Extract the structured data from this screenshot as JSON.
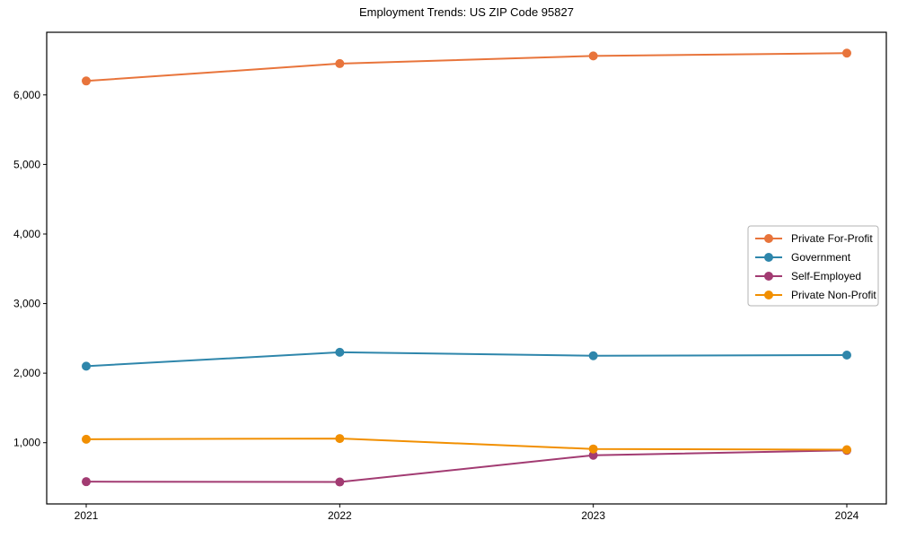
{
  "chart_data": {
    "type": "line",
    "title": "Employment Trends: US ZIP Code 95827",
    "xlabel": "",
    "ylabel": "",
    "x_tick_labels": [
      "2021",
      "2022",
      "2023",
      "2024"
    ],
    "yticks": [
      1000,
      2000,
      3000,
      4000,
      5000,
      6000
    ],
    "ytick_labels": [
      "1,000",
      "2,000",
      "3,000",
      "4,000",
      "5,000",
      "6,000"
    ],
    "ylim": [
      120,
      6900
    ],
    "grid": false,
    "legend_position": "center right",
    "marker": "circle",
    "series": [
      {
        "name": "Private For-Profit",
        "color": "#E8743B",
        "values": [
          6200,
          6450,
          6560,
          6600
        ]
      },
      {
        "name": "Government",
        "color": "#2E86AB",
        "values": [
          2100,
          2300,
          2250,
          2260
        ]
      },
      {
        "name": "Self-Employed",
        "color": "#A23B72",
        "values": [
          440,
          435,
          820,
          890
        ]
      },
      {
        "name": "Private Non-Profit",
        "color": "#F18F01",
        "values": [
          1050,
          1060,
          910,
          900
        ]
      }
    ],
    "axis_color": "#000000",
    "legend_border_color": "#b3b3b3",
    "background_color": "#ffffff"
  }
}
